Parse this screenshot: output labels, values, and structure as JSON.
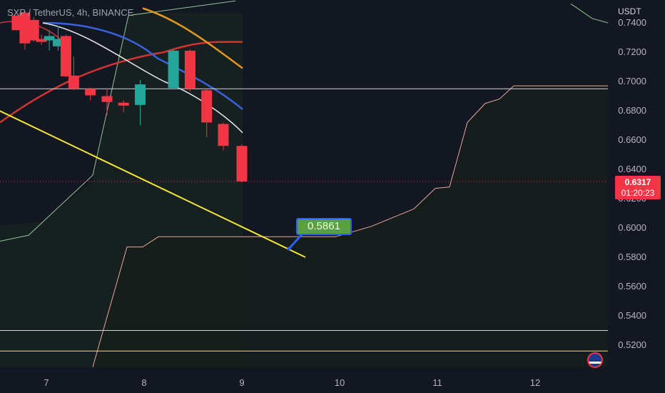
{
  "header": {
    "symbol_title": "SXP / TetherUS, 4h, BINANCE"
  },
  "axis": {
    "currency": "USDT"
  },
  "current_price": {
    "value": "0.6317",
    "countdown": "01:20:23",
    "color": "#f23645"
  },
  "annotation": {
    "label": "0.5861",
    "color": "#5aa13d",
    "border": "#2962ff"
  },
  "colors": {
    "up": "#26a69a",
    "down": "#f23645",
    "trendline": "#f5e73a",
    "cloud": "#ffb7a8"
  },
  "chart_data": {
    "type": "candlestick",
    "y_tick_labels": [
      "0.7400",
      "0.7200",
      "0.7000",
      "0.6800",
      "0.6600",
      "0.6400",
      "0.6200",
      "0.6000",
      "0.5800",
      "0.5600",
      "0.5400",
      "0.5200"
    ],
    "x_tick_labels": [
      "7",
      "8",
      "9",
      "10",
      "11",
      "12"
    ],
    "ylim": [
      0.505,
      0.745
    ],
    "candles": [
      {
        "x": 6.7,
        "o": 0.745,
        "c": 0.735,
        "h": 0.745,
        "l": 0.735
      },
      {
        "x": 6.78,
        "o": 0.747,
        "c": 0.726,
        "h": 0.748,
        "l": 0.722
      },
      {
        "x": 6.87,
        "o": 0.742,
        "c": 0.728,
        "h": 0.744,
        "l": 0.727
      },
      {
        "x": 6.95,
        "o": 0.729,
        "c": 0.727,
        "h": 0.732,
        "l": 0.725
      },
      {
        "x": 7.03,
        "o": 0.728,
        "c": 0.731,
        "h": 0.735,
        "l": 0.721
      },
      {
        "x": 7.12,
        "o": 0.724,
        "c": 0.729,
        "h": 0.738,
        "l": 0.721
      },
      {
        "x": 7.2,
        "o": 0.731,
        "c": 0.7035,
        "h": 0.732,
        "l": 0.703
      },
      {
        "x": 7.28,
        "o": 0.704,
        "c": 0.695,
        "h": 0.717,
        "l": 0.694
      },
      {
        "x": 7.45,
        "o": 0.695,
        "c": 0.6905,
        "h": 0.696,
        "l": 0.687
      },
      {
        "x": 7.62,
        "o": 0.69,
        "c": 0.686,
        "h": 0.695,
        "l": 0.677
      },
      {
        "x": 7.79,
        "o": 0.6855,
        "c": 0.6835,
        "h": 0.687,
        "l": 0.679
      },
      {
        "x": 7.96,
        "o": 0.684,
        "c": 0.698,
        "h": 0.701,
        "l": 0.67
      },
      {
        "x": 8.3,
        "o": 0.6955,
        "c": 0.721,
        "h": 0.722,
        "l": 0.695
      },
      {
        "x": 8.47,
        "o": 0.721,
        "c": 0.695,
        "h": 0.722,
        "l": 0.693
      },
      {
        "x": 8.64,
        "o": 0.694,
        "c": 0.672,
        "h": 0.695,
        "l": 0.662
      },
      {
        "x": 8.81,
        "o": 0.671,
        "c": 0.656,
        "h": 0.672,
        "l": 0.653
      },
      {
        "x": 9.0,
        "o": 0.656,
        "c": 0.6317,
        "h": 0.657,
        "l": 0.631
      }
    ],
    "horizontal_levels": [
      {
        "price": 0.695,
        "color": "#d1d4dc"
      },
      {
        "price": 0.53,
        "color": "#d1d4dc"
      },
      {
        "price": 0.516,
        "color": "#f5e73a"
      }
    ],
    "trendline": {
      "from": [
        6.05,
        0.695
      ],
      "to": [
        9.65,
        0.58
      ],
      "color": "#f5e73a"
    },
    "annotated_price": 0.5861
  }
}
